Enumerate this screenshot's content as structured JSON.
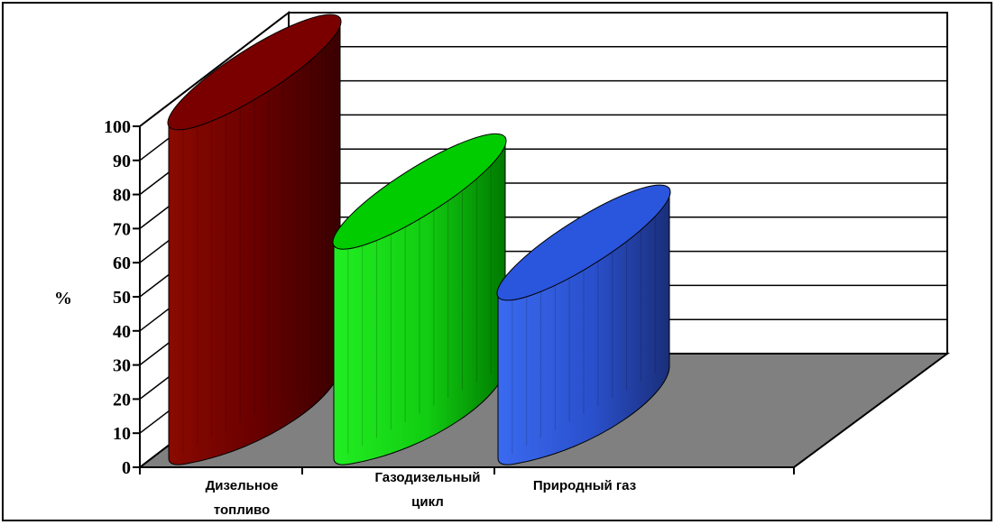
{
  "chart_data": {
    "type": "bar",
    "style": "3d-cylinder",
    "title": "",
    "xlabel": "",
    "ylabel": "%",
    "ylim": [
      0,
      100
    ],
    "yticks": [
      0,
      10,
      20,
      30,
      40,
      50,
      60,
      70,
      80,
      90,
      100
    ],
    "grid": true,
    "categories": [
      [
        "Дизельное",
        "топливо"
      ],
      [
        "Газодизельный",
        "цикл"
      ],
      [
        "Природный газ"
      ]
    ],
    "values": [
      100,
      65,
      50
    ],
    "colors": [
      "#7a0000",
      "#00cc00",
      "#2a55dd"
    ],
    "wall_color": "#ffffff",
    "floor_color": "#808080"
  }
}
